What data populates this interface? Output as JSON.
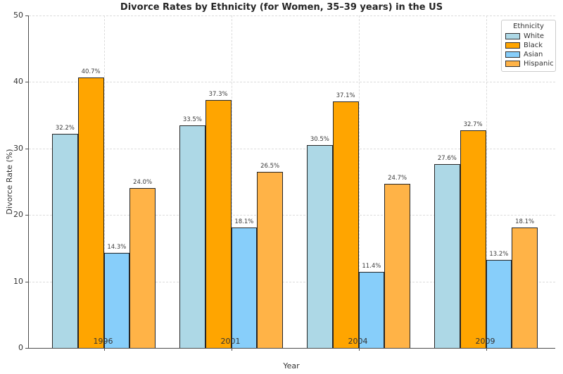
{
  "chart_data": {
    "type": "bar",
    "title": "Divorce Rates by Ethnicity (for Women, 35–39 years) in the US",
    "xlabel": "Year",
    "ylabel": "Divorce Rate (%)",
    "categories": [
      "1996",
      "2001",
      "2004",
      "2009"
    ],
    "series": [
      {
        "name": "White",
        "color": "#ADD8E6",
        "values": [
          32.2,
          33.5,
          30.5,
          27.6
        ]
      },
      {
        "name": "Black",
        "color": "#FFA500",
        "values": [
          40.7,
          37.3,
          37.1,
          32.7
        ]
      },
      {
        "name": "Asian",
        "color": "#87CEFA",
        "values": [
          14.3,
          18.1,
          11.4,
          13.2
        ]
      },
      {
        "name": "Hispanic",
        "color": "#FFB347",
        "values": [
          24.0,
          26.5,
          24.7,
          18.1
        ]
      }
    ],
    "bar_labels": [
      [
        "32.2%",
        "33.5%",
        "30.5%",
        "27.6%"
      ],
      [
        "40.7%",
        "37.3%",
        "37.1%",
        "32.7%"
      ],
      [
        "14.3%",
        "18.1%",
        "11.4%",
        "13.2%"
      ],
      [
        "24.0%",
        "26.5%",
        "24.7%",
        "18.1%"
      ]
    ],
    "ylim": [
      0,
      50
    ],
    "yticks": [
      0,
      10,
      20,
      30,
      40,
      50
    ],
    "grid": "both-dashed",
    "bar_edge_color": "#262626",
    "legend": {
      "title": "Ethnicity",
      "position": "upper right",
      "entries": [
        "White",
        "Black",
        "Asian",
        "Hispanic"
      ]
    }
  }
}
